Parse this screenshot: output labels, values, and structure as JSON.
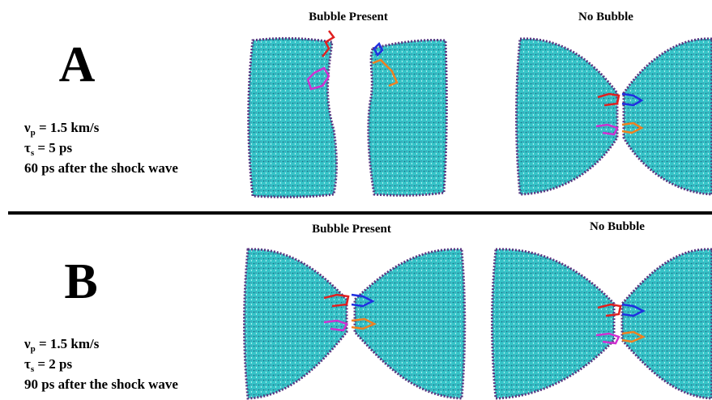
{
  "panels": [
    {
      "letter": "A",
      "params": [
        {
          "symbol": "ν",
          "sub": "p",
          "text": " = 1.5 km/s"
        },
        {
          "symbol": "τ",
          "sub": "s",
          "text": " = 5 ps"
        },
        {
          "text": "60 ps after the shock wave"
        }
      ],
      "images": [
        {
          "title": "Bubble Present"
        },
        {
          "title": "No Bubble"
        }
      ]
    },
    {
      "letter": "B",
      "params": [
        {
          "symbol": "ν",
          "sub": "p",
          "text": " = 1.5 km/s"
        },
        {
          "symbol": "τ",
          "sub": "s",
          "text": " = 2 ps"
        },
        {
          "text": "90 ps after the shock wave"
        }
      ],
      "images": [
        {
          "title": "Bubble Present"
        },
        {
          "title": "No Bubble"
        }
      ]
    }
  ]
}
